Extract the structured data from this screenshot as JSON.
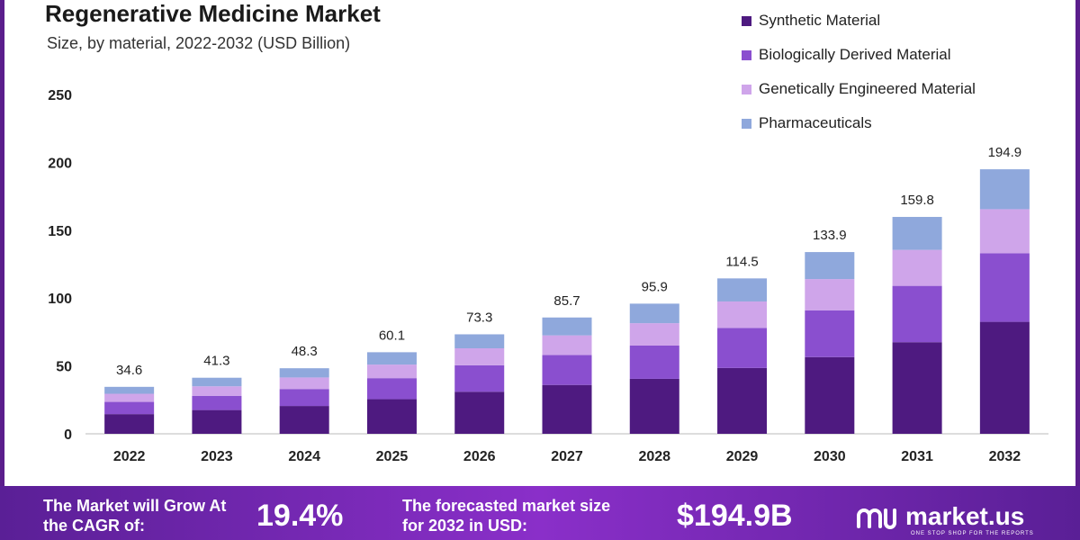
{
  "header": {
    "title": "Regenerative Medicine Market",
    "subtitle": "Size, by material, 2022-2032 (USD Billion)"
  },
  "colors": {
    "frame": "#5b1e8c",
    "footer": "#6f28ad"
  },
  "chart_data": {
    "type": "bar",
    "stacked": true,
    "categories": [
      "2022",
      "2023",
      "2024",
      "2025",
      "2026",
      "2027",
      "2028",
      "2029",
      "2030",
      "2031",
      "2032"
    ],
    "series": [
      {
        "name": "Synthetic Material",
        "color": "#4e1a80",
        "values": [
          14.5,
          17.5,
          20.5,
          25.5,
          31,
          36,
          40.5,
          48.5,
          56.5,
          67.5,
          82.5
        ]
      },
      {
        "name": "Biologically Derived Material",
        "color": "#8a4fcf",
        "values": [
          9,
          10.5,
          12.5,
          15.5,
          19.5,
          22,
          24.5,
          29.5,
          34.5,
          41.5,
          50.5
        ]
      },
      {
        "name": "Genetically Engineered Material",
        "color": "#cfa5ea",
        "values": [
          6,
          7,
          8.5,
          10,
          12.5,
          14.5,
          16.5,
          19.5,
          23,
          26.5,
          32.5
        ]
      },
      {
        "name": "Pharmaceuticals",
        "color": "#8fa8dc",
        "values": [
          5.1,
          6.3,
          6.8,
          9.1,
          10.3,
          13.2,
          14.4,
          17,
          19.9,
          24.3,
          29.4
        ]
      }
    ],
    "totals": [
      "34.6",
      "41.3",
      "48.3",
      "60.1",
      "73.3",
      "85.7",
      "95.9",
      "114.5",
      "133.9",
      "159.8",
      "194.9"
    ],
    "ylim": [
      0,
      250
    ],
    "yticks": [
      "0",
      "50",
      "100",
      "150",
      "200",
      "250"
    ],
    "xlabel": "",
    "ylabel": "",
    "legend_position": "top-right",
    "grid": false
  },
  "footer": {
    "cagr_label": "The Market will Grow At the CAGR of:",
    "cagr_value": "19.4%",
    "forecast_label": "The forecasted market size for 2032 in USD:",
    "forecast_value": "$194.9B",
    "brand": "market.us",
    "tagline": "ONE STOP SHOP FOR THE REPORTS"
  }
}
